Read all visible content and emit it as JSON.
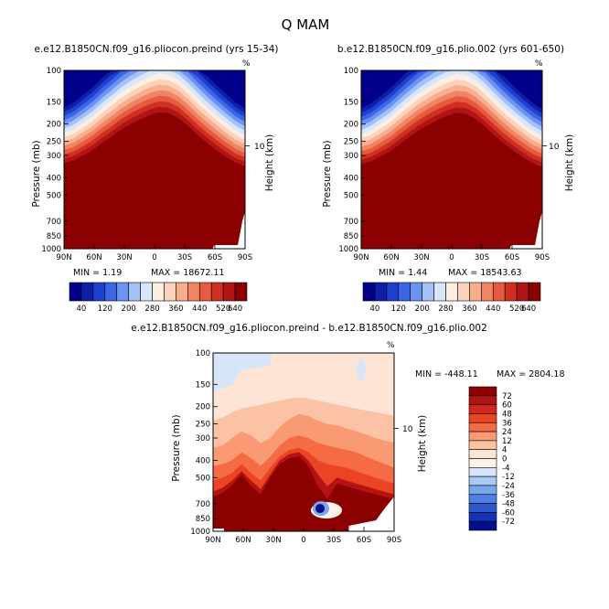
{
  "chart_data": {
    "type": "heatmap",
    "title": "Q MAM",
    "panels": [
      {
        "id": "panel1",
        "title": "e.e12.B1850CN.f09_g16.pliocon.preind (yrs 15-34)",
        "ylabel": "Pressure (mb)",
        "ylabel_right": "Height (km)",
        "pct_label": "%",
        "right_tick_label": "10",
        "x_ticks": [
          "90N",
          "60N",
          "30N",
          "0",
          "30S",
          "60S",
          "90S"
        ],
        "y_ticks": [
          "100",
          "150",
          "200",
          "250",
          "300",
          "400",
          "500",
          "700",
          "850",
          "1000"
        ],
        "min_text": "MIN =     1.19",
        "max_text": "MAX = 18672.11",
        "colorbar_labels": [
          "40",
          "120",
          "200",
          "280",
          "360",
          "440",
          "520",
          "640"
        ],
        "colors": [
          "#00008b",
          "#0d1fa6",
          "#1f3fd0",
          "#3c66e8",
          "#6d93f2",
          "#a5c2f8",
          "#d8e6fb",
          "#fdeee2",
          "#fbd3bc",
          "#f7ae8e",
          "#f18464",
          "#e65b3e",
          "#cf3020",
          "#b01414",
          "#8b0000"
        ],
        "top_level_mb": [
          330,
          320,
          300,
          280,
          255,
          235,
          215,
          200,
          188,
          178,
          172,
          174,
          185,
          205,
          230,
          255,
          280,
          305,
          330,
          345
        ],
        "band_step": 0.055,
        "surface": true
      },
      {
        "id": "panel2",
        "title": "b.e12.B1850CN.f09_g16.plio.002 (yrs 601-650)",
        "ylabel": "Pressure (mb)",
        "ylabel_right": "Height (km)",
        "pct_label": "%",
        "right_tick_label": "10",
        "x_ticks": [
          "90N",
          "60N",
          "30N",
          "0",
          "30S",
          "60S",
          "90S"
        ],
        "y_ticks": [
          "100",
          "150",
          "200",
          "250",
          "300",
          "400",
          "500",
          "700",
          "850",
          "1000"
        ],
        "min_text": "MIN =     1.44",
        "max_text": "MAX = 18543.63",
        "colorbar_labels": [
          "40",
          "120",
          "200",
          "280",
          "360",
          "440",
          "520",
          "640"
        ],
        "colors": [
          "#00008b",
          "#0d1fa6",
          "#1f3fd0",
          "#3c66e8",
          "#6d93f2",
          "#a5c2f8",
          "#d8e6fb",
          "#fdeee2",
          "#fbd3bc",
          "#f7ae8e",
          "#f18464",
          "#e65b3e",
          "#cf3020",
          "#b01414",
          "#8b0000"
        ],
        "top_level_mb": [
          335,
          325,
          305,
          285,
          260,
          238,
          218,
          203,
          190,
          180,
          173,
          175,
          187,
          207,
          232,
          258,
          283,
          308,
          332,
          348
        ],
        "band_step": 0.055,
        "surface": true
      },
      {
        "id": "panel3",
        "title": "e.e12.B1850CN.f09_g16.pliocon.preind - b.e12.B1850CN.f09_g16.plio.002",
        "ylabel": "Pressure (mb)",
        "ylabel_right": "Height (km)",
        "pct_label": "%",
        "right_tick_label": "10",
        "x_ticks": [
          "90N",
          "60N",
          "30N",
          "0",
          "30S",
          "60S",
          "90S"
        ],
        "y_ticks": [
          "100",
          "150",
          "200",
          "250",
          "300",
          "400",
          "500",
          "700",
          "850",
          "1000"
        ],
        "min_text": "MIN = -448.11",
        "max_text": "MAX = 2804.18",
        "colorbar_labels": [
          "72",
          "60",
          "48",
          "36",
          "24",
          "12",
          "4",
          "0",
          "-4",
          "-12",
          "-24",
          "-36",
          "-48",
          "-60",
          "-72"
        ],
        "colors": [
          "#8b0000",
          "#b51313",
          "#d2261b",
          "#ea4425",
          "#f56c44",
          "#f99a74",
          "#fbc2a6",
          "#fde4d4",
          "#fdf2ea",
          "#d6e6f8",
          "#a9c9f2",
          "#7aa6ea",
          "#4f7fe0",
          "#2b58cf",
          "#1233b5",
          "#00108c"
        ]
      }
    ]
  }
}
